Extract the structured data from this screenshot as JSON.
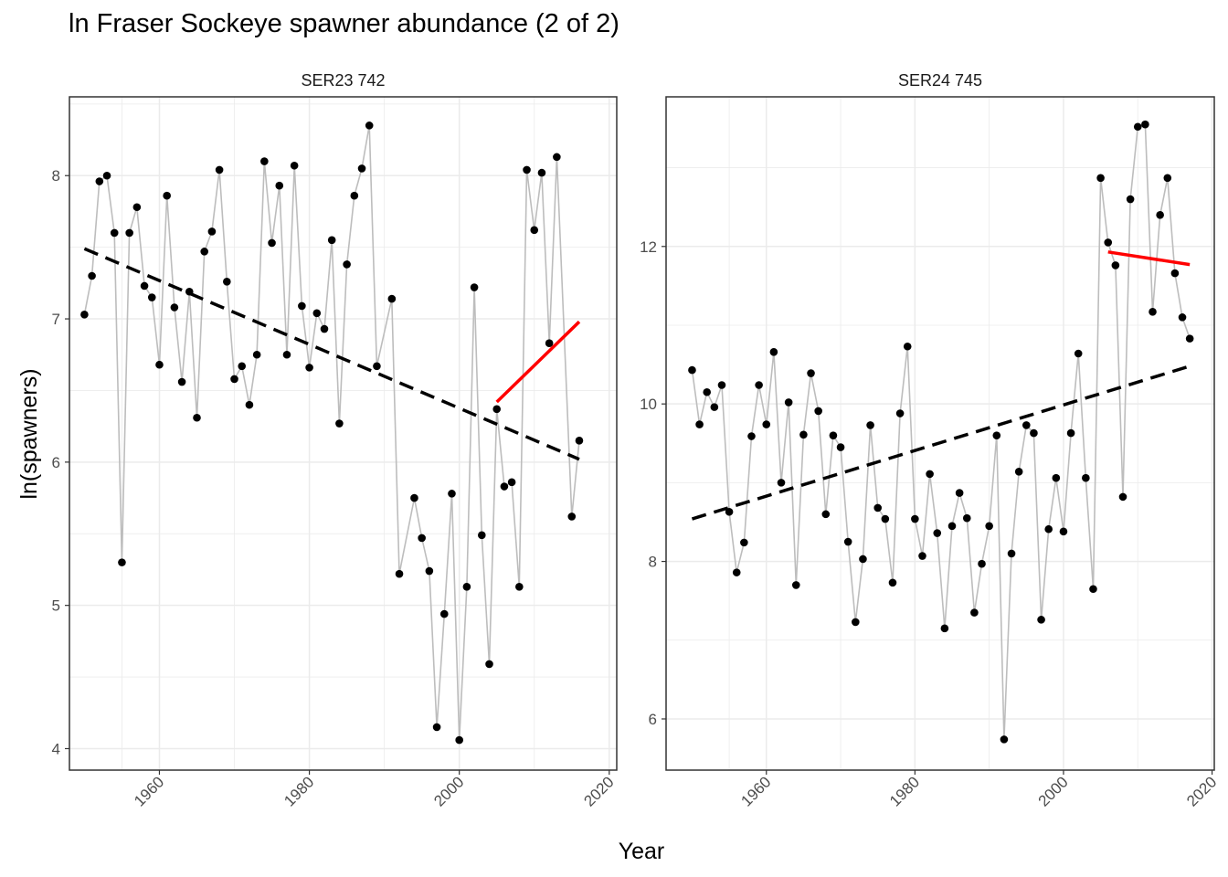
{
  "title": "ln Fraser Sockeye spawner abundance (2 of 2)",
  "xlabel": "Year",
  "ylabel": "ln(spawners)",
  "colors": {
    "line": "#bdbdbd",
    "points": "#000000",
    "trend_overall": "#000000",
    "trend_recent": "#ff0000",
    "grid": "#ebebeb"
  },
  "chart_data": [
    {
      "type": "line",
      "facet": "SER23 742",
      "x_ticks": [
        "1960",
        "1980",
        "2000",
        "2020"
      ],
      "y_ticks": [
        "4",
        "5",
        "6",
        "7",
        "8"
      ],
      "xlim": [
        1948,
        2021
      ],
      "ylim": [
        3.85,
        8.55
      ],
      "series": [
        {
          "x": [
            1950,
            1951,
            1952,
            1953,
            1954,
            1955,
            1956,
            1957,
            1958,
            1959,
            1960,
            1961,
            1962,
            1963,
            1964,
            1965,
            1966,
            1967,
            1968,
            1969,
            1970,
            1971,
            1972,
            1973,
            1974,
            1975,
            1976,
            1977,
            1978,
            1979,
            1980,
            1981,
            1982,
            1983,
            1984,
            1985,
            1986,
            1987,
            1988,
            1989,
            1990,
            1991,
            1992,
            1993,
            1994,
            1995,
            1996,
            1997,
            1998,
            1999,
            2000,
            2001,
            2002,
            2003,
            2004,
            2005,
            2006,
            2007,
            2008,
            2009,
            2010,
            2011,
            2012,
            2013,
            2014,
            2015,
            2016
          ],
          "y": [
            7.03,
            7.3,
            7.96,
            8.0,
            7.6,
            5.3,
            7.6,
            7.78,
            7.23,
            7.15,
            6.68,
            7.86,
            7.08,
            6.56,
            7.19,
            6.31,
            7.47,
            7.61,
            8.04,
            7.26,
            6.58,
            6.67,
            6.4,
            6.75,
            8.1,
            7.53,
            7.93,
            6.75,
            8.07,
            7.09,
            6.66,
            7.04,
            6.93,
            7.55,
            6.27,
            7.38,
            7.86,
            8.05,
            8.35,
            6.67,
            null,
            7.14,
            5.22,
            null,
            5.75,
            5.47,
            5.24,
            4.15,
            4.94,
            5.78,
            4.06,
            5.13,
            7.22,
            5.49,
            4.59,
            6.37,
            5.83,
            5.86,
            5.13,
            8.04,
            7.62,
            8.02,
            6.83,
            8.13,
            null,
            5.62,
            6.15
          ]
        }
      ],
      "trend_overall": {
        "x": [
          1950,
          2016
        ],
        "y": [
          7.49,
          6.02
        ]
      },
      "trend_recent": {
        "x": [
          2005,
          2016
        ],
        "y": [
          6.42,
          6.98
        ]
      }
    },
    {
      "type": "line",
      "facet": "SER24 745",
      "x_ticks": [
        "1960",
        "1980",
        "2000",
        "2020"
      ],
      "y_ticks": [
        "6",
        "8",
        "10",
        "12"
      ],
      "xlim": [
        1946.5,
        2020.3
      ],
      "ylim": [
        5.35,
        13.9
      ],
      "series": [
        {
          "x": [
            1950,
            1951,
            1952,
            1953,
            1954,
            1955,
            1956,
            1957,
            1958,
            1959,
            1960,
            1961,
            1962,
            1963,
            1964,
            1965,
            1966,
            1967,
            1968,
            1969,
            1970,
            1971,
            1972,
            1973,
            1974,
            1975,
            1976,
            1977,
            1978,
            1979,
            1980,
            1981,
            1982,
            1983,
            1984,
            1985,
            1986,
            1987,
            1988,
            1989,
            1990,
            1991,
            1992,
            1993,
            1994,
            1995,
            1996,
            1997,
            1998,
            1999,
            2000,
            2001,
            2002,
            2003,
            2004,
            2005,
            2006,
            2007,
            2008,
            2009,
            2010,
            2011,
            2012,
            2013,
            2014,
            2015,
            2016,
            2017
          ],
          "y": [
            10.43,
            9.74,
            10.15,
            9.96,
            10.24,
            8.63,
            7.86,
            8.24,
            9.59,
            10.24,
            9.74,
            10.66,
            9.0,
            10.02,
            7.7,
            9.61,
            10.39,
            9.91,
            8.6,
            9.6,
            9.45,
            8.25,
            7.23,
            8.03,
            9.73,
            8.68,
            8.54,
            7.73,
            9.88,
            10.73,
            8.54,
            8.07,
            9.11,
            8.36,
            7.15,
            8.45,
            8.87,
            8.55,
            7.35,
            7.97,
            8.45,
            9.6,
            5.74,
            8.1,
            9.14,
            9.73,
            9.63,
            7.26,
            8.41,
            9.06,
            8.38,
            9.63,
            10.64,
            9.06,
            7.65,
            12.87,
            12.05,
            11.76,
            8.82,
            12.6,
            13.52,
            13.55,
            11.17,
            12.4,
            12.87,
            11.66,
            11.1,
            10.83
          ]
        }
      ],
      "trend_overall": {
        "x": [
          1950,
          2017
        ],
        "y": [
          8.54,
          10.48
        ]
      },
      "trend_recent": {
        "x": [
          2006,
          2017
        ],
        "y": [
          11.93,
          11.77
        ]
      }
    }
  ]
}
